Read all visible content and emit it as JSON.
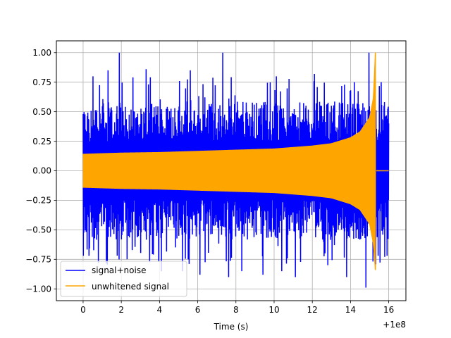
{
  "chart_data": {
    "type": "line",
    "title": "",
    "xlabel": "Time (s)",
    "ylabel": "",
    "x_offset_label": "+1e8",
    "xlim": [
      -1.4,
      16.9
    ],
    "ylim": [
      -1.1,
      1.1
    ],
    "xticks": [
      0,
      2,
      4,
      6,
      8,
      10,
      12,
      14,
      16
    ],
    "xtick_labels": [
      "0",
      "2",
      "4",
      "6",
      "8",
      "10",
      "12",
      "14",
      "16"
    ],
    "yticks": [
      -1.0,
      -0.75,
      -0.5,
      -0.25,
      0.0,
      0.25,
      0.5,
      0.75,
      1.0
    ],
    "ytick_labels": [
      "−1.00",
      "−0.75",
      "−0.50",
      "−0.25",
      "0.00",
      "0.25",
      "0.50",
      "0.75",
      "1.00"
    ],
    "grid": true,
    "legend": {
      "position": "lower-left"
    },
    "series": [
      {
        "name": "signal+noise",
        "color": "#0000ff",
        "x_range": [
          0,
          16
        ],
        "typical_envelope": 0.45,
        "min": -1.0,
        "max": 1.0,
        "peaks": [
          {
            "x": 0.0,
            "y": 0.48
          },
          {
            "x": 0.3,
            "y": -0.72
          },
          {
            "x": 0.5,
            "y": 0.8
          },
          {
            "x": 0.8,
            "y": -0.78
          },
          {
            "x": 1.3,
            "y": 0.85
          },
          {
            "x": 1.9,
            "y": 1.0
          },
          {
            "x": 2.3,
            "y": -0.75
          },
          {
            "x": 3.3,
            "y": 0.86
          },
          {
            "x": 4.1,
            "y": -0.85
          },
          {
            "x": 5.2,
            "y": -0.85
          },
          {
            "x": 5.6,
            "y": 0.85
          },
          {
            "x": 6.1,
            "y": -0.88
          },
          {
            "x": 7.3,
            "y": 1.0
          },
          {
            "x": 7.6,
            "y": -0.9
          },
          {
            "x": 8.3,
            "y": -0.85
          },
          {
            "x": 9.4,
            "y": -0.88
          },
          {
            "x": 10.1,
            "y": 0.8
          },
          {
            "x": 10.4,
            "y": -0.85
          },
          {
            "x": 11.1,
            "y": -0.9
          },
          {
            "x": 12.1,
            "y": 0.82
          },
          {
            "x": 12.8,
            "y": -0.8
          },
          {
            "x": 13.8,
            "y": -0.9
          },
          {
            "x": 14.2,
            "y": 0.75
          },
          {
            "x": 14.8,
            "y": -0.99
          },
          {
            "x": 14.95,
            "y": 1.0
          },
          {
            "x": 15.45,
            "y": -0.72
          },
          {
            "x": 15.6,
            "y": 0.75
          },
          {
            "x": 15.9,
            "y": -0.72
          }
        ]
      },
      {
        "name": "unwhitened signal",
        "color": "#ffa500",
        "envelope_x": [
          0,
          2,
          4,
          6,
          8,
          10,
          12,
          13,
          14,
          14.5,
          15.0,
          15.2,
          15.3
        ],
        "envelope_y": [
          0.14,
          0.15,
          0.155,
          0.165,
          0.175,
          0.185,
          0.21,
          0.23,
          0.28,
          0.33,
          0.45,
          0.62,
          1.0
        ],
        "envelope_y_lower": [
          -0.14,
          -0.15,
          -0.155,
          -0.165,
          -0.175,
          -0.185,
          -0.21,
          -0.23,
          -0.28,
          -0.33,
          -0.45,
          -0.62,
          -0.84
        ],
        "merger_time": 15.35,
        "post_merger_value": 0.0,
        "x_end": 16
      }
    ]
  }
}
